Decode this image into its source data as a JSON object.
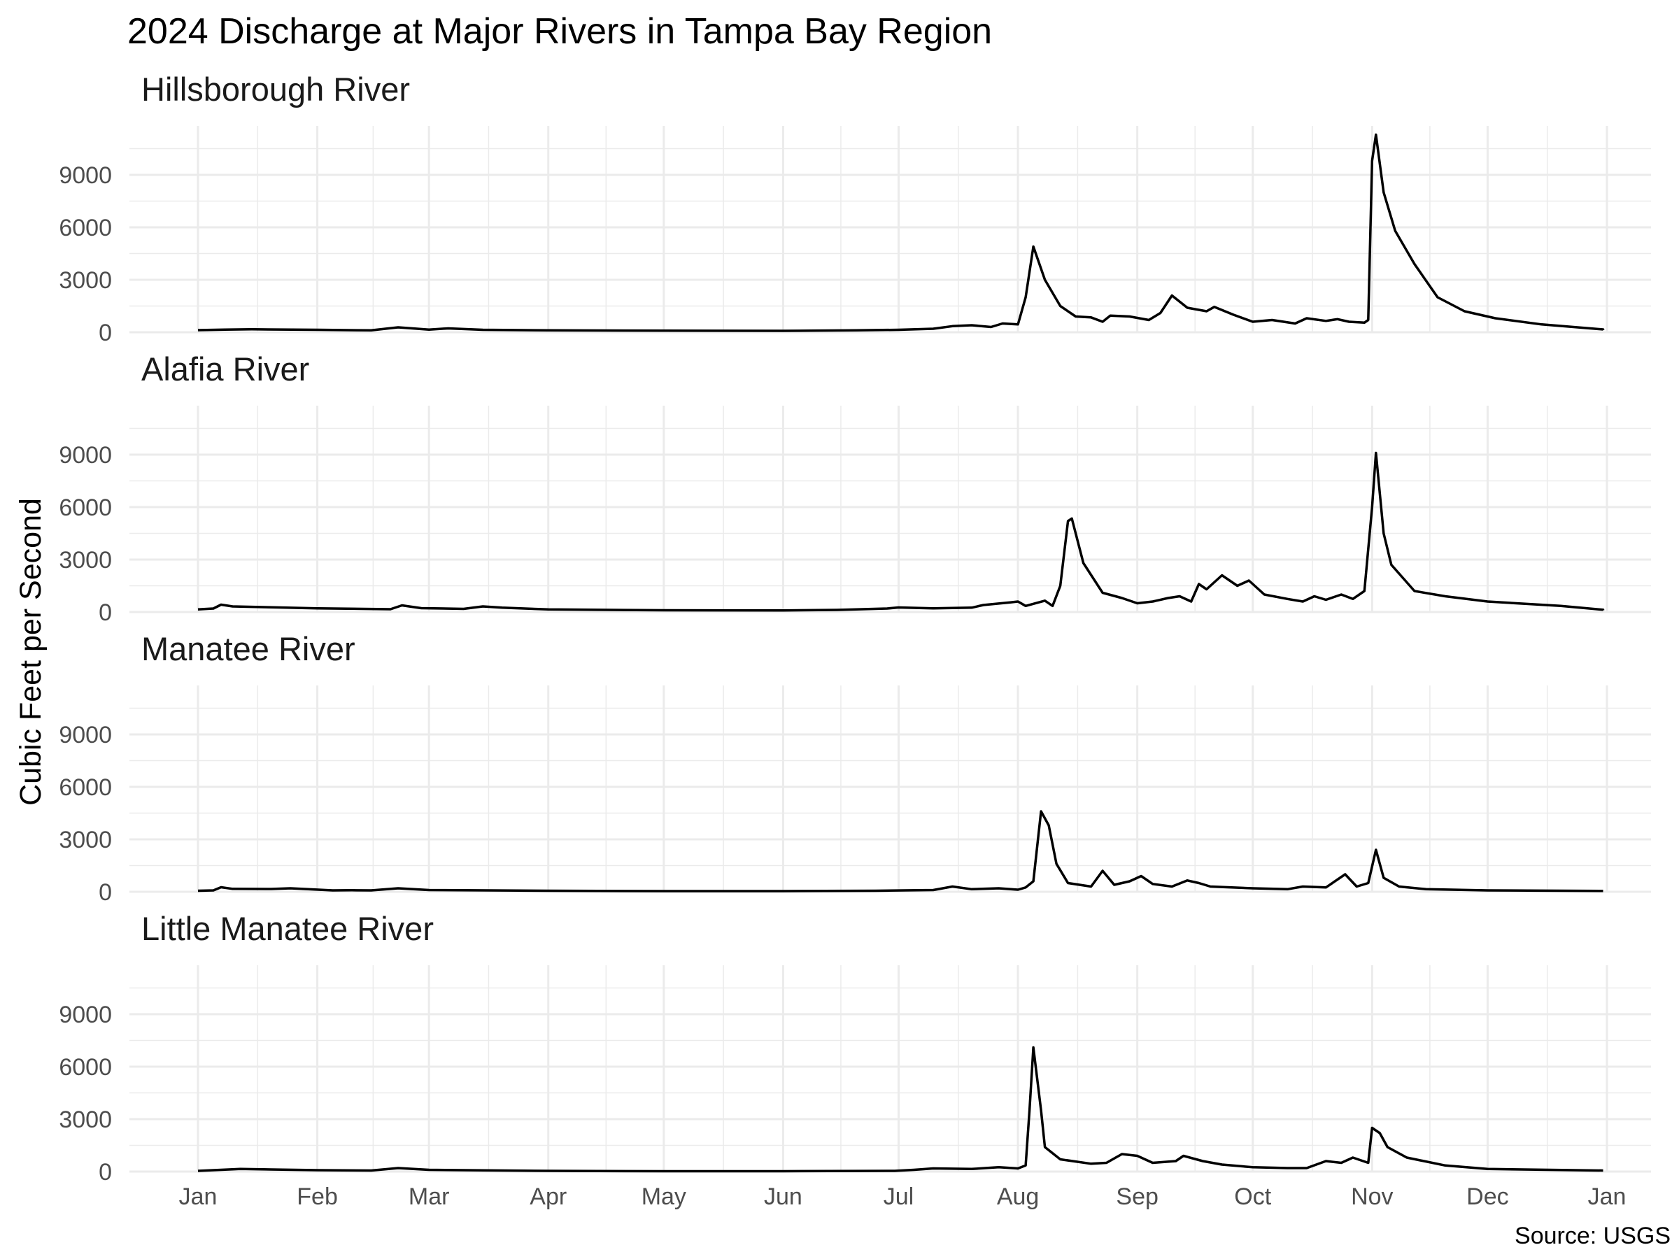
{
  "title": "2024 Discharge at Major Rivers in Tampa Bay Region",
  "caption": "Source: USGS",
  "chart_data": {
    "type": "line",
    "title": "2024 Discharge at Major Rivers in Tampa Bay Region",
    "ylabel": "Cubic Feet per Second",
    "xlabel": "",
    "ylim": [
      0,
      11800
    ],
    "xlim": [
      "2024-01-01",
      "2025-01-01"
    ],
    "grid": true,
    "y_ticks": [
      0,
      3000,
      6000,
      9000
    ],
    "y_tick_labels": [
      "0",
      "3000",
      "6000",
      "9000"
    ],
    "x_ticks": [
      "2024-01-01",
      "2024-02-01",
      "2024-03-01",
      "2024-04-01",
      "2024-05-01",
      "2024-06-01",
      "2024-07-01",
      "2024-08-01",
      "2024-09-01",
      "2024-10-01",
      "2024-11-01",
      "2024-12-01",
      "2025-01-01"
    ],
    "x_tick_labels": [
      "Jan",
      "Feb",
      "Mar",
      "Apr",
      "May",
      "Jun",
      "Jul",
      "Aug",
      "Sep",
      "Oct",
      "Nov",
      "Dec",
      "Jan"
    ],
    "panels": [
      {
        "name": "Hillsborough River",
        "points": [
          [
            "2024-01-01",
            120
          ],
          [
            "2024-01-08",
            150
          ],
          [
            "2024-01-15",
            170
          ],
          [
            "2024-02-01",
            140
          ],
          [
            "2024-02-15",
            110
          ],
          [
            "2024-02-22",
            280
          ],
          [
            "2024-03-01",
            150
          ],
          [
            "2024-03-06",
            220
          ],
          [
            "2024-03-15",
            140
          ],
          [
            "2024-04-01",
            110
          ],
          [
            "2024-05-01",
            90
          ],
          [
            "2024-06-01",
            80
          ],
          [
            "2024-06-20",
            110
          ],
          [
            "2024-07-01",
            140
          ],
          [
            "2024-07-10",
            200
          ],
          [
            "2024-07-15",
            350
          ],
          [
            "2024-07-20",
            400
          ],
          [
            "2024-07-25",
            300
          ],
          [
            "2024-07-28",
            500
          ],
          [
            "2024-08-01",
            450
          ],
          [
            "2024-08-03",
            2000
          ],
          [
            "2024-08-05",
            4900
          ],
          [
            "2024-08-08",
            3000
          ],
          [
            "2024-08-12",
            1500
          ],
          [
            "2024-08-16",
            900
          ],
          [
            "2024-08-20",
            850
          ],
          [
            "2024-08-23",
            600
          ],
          [
            "2024-08-25",
            950
          ],
          [
            "2024-08-30",
            900
          ],
          [
            "2024-09-04",
            700
          ],
          [
            "2024-09-07",
            1100
          ],
          [
            "2024-09-10",
            2100
          ],
          [
            "2024-09-14",
            1400
          ],
          [
            "2024-09-19",
            1200
          ],
          [
            "2024-09-21",
            1450
          ],
          [
            "2024-09-26",
            1000
          ],
          [
            "2024-10-01",
            600
          ],
          [
            "2024-10-06",
            700
          ],
          [
            "2024-10-12",
            500
          ],
          [
            "2024-10-15",
            800
          ],
          [
            "2024-10-20",
            650
          ],
          [
            "2024-10-23",
            750
          ],
          [
            "2024-10-26",
            600
          ],
          [
            "2024-10-30",
            550
          ],
          [
            "2024-10-31",
            700
          ],
          [
            "2024-11-01",
            9800
          ],
          [
            "2024-11-02",
            11300
          ],
          [
            "2024-11-04",
            8000
          ],
          [
            "2024-11-07",
            5800
          ],
          [
            "2024-11-12",
            3900
          ],
          [
            "2024-11-18",
            2000
          ],
          [
            "2024-11-25",
            1200
          ],
          [
            "2024-12-03",
            800
          ],
          [
            "2024-12-15",
            450
          ],
          [
            "2024-12-31",
            160
          ],
          [
            "2024-12-31",
            120
          ]
        ]
      },
      {
        "name": "Alafia River",
        "points": [
          [
            "2024-01-01",
            150
          ],
          [
            "2024-01-05",
            200
          ],
          [
            "2024-01-07",
            420
          ],
          [
            "2024-01-10",
            320
          ],
          [
            "2024-01-20",
            270
          ],
          [
            "2024-02-01",
            210
          ],
          [
            "2024-02-20",
            160
          ],
          [
            "2024-02-23",
            380
          ],
          [
            "2024-02-28",
            220
          ],
          [
            "2024-03-10",
            180
          ],
          [
            "2024-03-15",
            320
          ],
          [
            "2024-03-20",
            250
          ],
          [
            "2024-04-01",
            150
          ],
          [
            "2024-05-01",
            100
          ],
          [
            "2024-06-01",
            90
          ],
          [
            "2024-06-15",
            120
          ],
          [
            "2024-06-28",
            200
          ],
          [
            "2024-07-01",
            260
          ],
          [
            "2024-07-10",
            210
          ],
          [
            "2024-07-20",
            250
          ],
          [
            "2024-07-23",
            400
          ],
          [
            "2024-07-30",
            550
          ],
          [
            "2024-08-01",
            600
          ],
          [
            "2024-08-03",
            350
          ],
          [
            "2024-08-08",
            650
          ],
          [
            "2024-08-10",
            350
          ],
          [
            "2024-08-12",
            1500
          ],
          [
            "2024-08-14",
            5200
          ],
          [
            "2024-08-15",
            5350
          ],
          [
            "2024-08-18",
            2800
          ],
          [
            "2024-08-23",
            1100
          ],
          [
            "2024-08-28",
            800
          ],
          [
            "2024-09-01",
            500
          ],
          [
            "2024-09-05",
            600
          ],
          [
            "2024-09-09",
            800
          ],
          [
            "2024-09-12",
            900
          ],
          [
            "2024-09-15",
            600
          ],
          [
            "2024-09-17",
            1600
          ],
          [
            "2024-09-19",
            1300
          ],
          [
            "2024-09-23",
            2100
          ],
          [
            "2024-09-27",
            1500
          ],
          [
            "2024-09-30",
            1800
          ],
          [
            "2024-10-04",
            1000
          ],
          [
            "2024-10-10",
            750
          ],
          [
            "2024-10-14",
            600
          ],
          [
            "2024-10-17",
            900
          ],
          [
            "2024-10-20",
            700
          ],
          [
            "2024-10-24",
            1000
          ],
          [
            "2024-10-27",
            750
          ],
          [
            "2024-10-30",
            1200
          ],
          [
            "2024-11-01",
            6000
          ],
          [
            "2024-11-02",
            9100
          ],
          [
            "2024-11-04",
            4500
          ],
          [
            "2024-11-06",
            2700
          ],
          [
            "2024-11-12",
            1200
          ],
          [
            "2024-11-20",
            900
          ],
          [
            "2024-12-01",
            600
          ],
          [
            "2024-12-20",
            350
          ],
          [
            "2024-12-31",
            130
          ],
          [
            "2024-12-31",
            100
          ]
        ]
      },
      {
        "name": "Manatee River",
        "points": [
          [
            "2024-01-01",
            60
          ],
          [
            "2024-01-05",
            80
          ],
          [
            "2024-01-07",
            260
          ],
          [
            "2024-01-10",
            170
          ],
          [
            "2024-01-20",
            160
          ],
          [
            "2024-01-25",
            200
          ],
          [
            "2024-02-05",
            80
          ],
          [
            "2024-02-10",
            90
          ],
          [
            "2024-02-15",
            80
          ],
          [
            "2024-02-22",
            200
          ],
          [
            "2024-03-01",
            100
          ],
          [
            "2024-04-01",
            60
          ],
          [
            "2024-05-01",
            40
          ],
          [
            "2024-06-01",
            40
          ],
          [
            "2024-06-25",
            60
          ],
          [
            "2024-07-10",
            100
          ],
          [
            "2024-07-15",
            300
          ],
          [
            "2024-07-20",
            150
          ],
          [
            "2024-07-27",
            200
          ],
          [
            "2024-08-01",
            120
          ],
          [
            "2024-08-03",
            250
          ],
          [
            "2024-08-05",
            600
          ],
          [
            "2024-08-07",
            4600
          ],
          [
            "2024-08-09",
            3800
          ],
          [
            "2024-08-11",
            1600
          ],
          [
            "2024-08-14",
            500
          ],
          [
            "2024-08-20",
            300
          ],
          [
            "2024-08-23",
            1200
          ],
          [
            "2024-08-26",
            400
          ],
          [
            "2024-08-30",
            600
          ],
          [
            "2024-09-02",
            900
          ],
          [
            "2024-09-05",
            450
          ],
          [
            "2024-09-10",
            300
          ],
          [
            "2024-09-14",
            650
          ],
          [
            "2024-09-17",
            500
          ],
          [
            "2024-09-20",
            300
          ],
          [
            "2024-10-01",
            200
          ],
          [
            "2024-10-10",
            150
          ],
          [
            "2024-10-14",
            300
          ],
          [
            "2024-10-20",
            250
          ],
          [
            "2024-10-25",
            1000
          ],
          [
            "2024-10-28",
            300
          ],
          [
            "2024-10-31",
            500
          ],
          [
            "2024-11-02",
            2400
          ],
          [
            "2024-11-04",
            800
          ],
          [
            "2024-11-08",
            300
          ],
          [
            "2024-11-15",
            150
          ],
          [
            "2024-12-01",
            80
          ],
          [
            "2024-12-31",
            50
          ],
          [
            "2024-12-31",
            50
          ]
        ]
      },
      {
        "name": "Little Manatee River",
        "points": [
          [
            "2024-01-01",
            40
          ],
          [
            "2024-01-05",
            80
          ],
          [
            "2024-01-12",
            150
          ],
          [
            "2024-01-20",
            120
          ],
          [
            "2024-02-01",
            80
          ],
          [
            "2024-02-15",
            60
          ],
          [
            "2024-02-22",
            200
          ],
          [
            "2024-03-01",
            100
          ],
          [
            "2024-03-10",
            80
          ],
          [
            "2024-04-01",
            40
          ],
          [
            "2024-05-01",
            20
          ],
          [
            "2024-06-01",
            20
          ],
          [
            "2024-06-30",
            40
          ],
          [
            "2024-07-05",
            100
          ],
          [
            "2024-07-10",
            180
          ],
          [
            "2024-07-20",
            150
          ],
          [
            "2024-07-27",
            250
          ],
          [
            "2024-08-01",
            180
          ],
          [
            "2024-08-03",
            350
          ],
          [
            "2024-08-04",
            3500
          ],
          [
            "2024-08-05",
            7100
          ],
          [
            "2024-08-07",
            3500
          ],
          [
            "2024-08-08",
            1400
          ],
          [
            "2024-08-12",
            700
          ],
          [
            "2024-08-20",
            450
          ],
          [
            "2024-08-24",
            500
          ],
          [
            "2024-08-28",
            1000
          ],
          [
            "2024-09-01",
            900
          ],
          [
            "2024-09-05",
            500
          ],
          [
            "2024-09-11",
            600
          ],
          [
            "2024-09-13",
            900
          ],
          [
            "2024-09-18",
            600
          ],
          [
            "2024-09-23",
            400
          ],
          [
            "2024-10-01",
            250
          ],
          [
            "2024-10-10",
            200
          ],
          [
            "2024-10-15",
            200
          ],
          [
            "2024-10-20",
            600
          ],
          [
            "2024-10-24",
            500
          ],
          [
            "2024-10-27",
            800
          ],
          [
            "2024-10-31",
            500
          ],
          [
            "2024-11-01",
            2500
          ],
          [
            "2024-11-03",
            2200
          ],
          [
            "2024-11-05",
            1400
          ],
          [
            "2024-11-10",
            800
          ],
          [
            "2024-11-20",
            350
          ],
          [
            "2024-12-01",
            150
          ],
          [
            "2024-12-31",
            60
          ],
          [
            "2024-12-31",
            60
          ]
        ]
      }
    ]
  }
}
